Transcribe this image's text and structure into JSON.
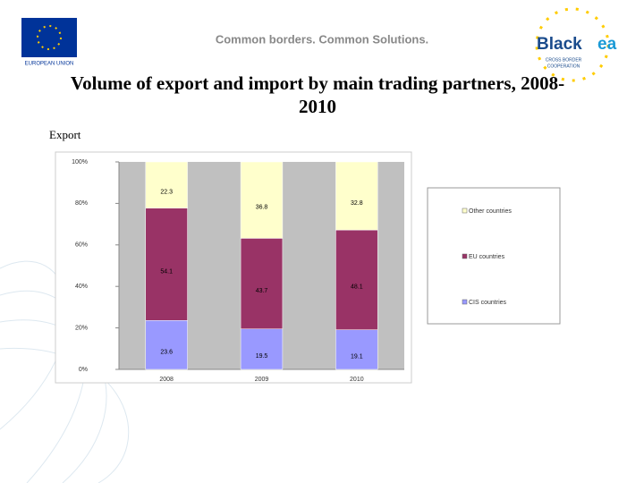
{
  "header": {
    "eu_label": "EUROPEAN UNION",
    "slogan": "Common borders. Common Solutions.",
    "logo_word": "Black",
    "logo_word2": "ea",
    "logo_line1": "CROSS BORDER",
    "logo_line2": "COOPERATION"
  },
  "title": "Volume of export and import by main trading partners, 2008-2010",
  "subtitle": "Export",
  "chart_data": {
    "type": "stacked_bar",
    "categories": [
      "2008",
      "2009",
      "2010"
    ],
    "series": [
      {
        "name": "CIS countries",
        "color": "#9999ff",
        "values": [
          23.6,
          19.5,
          19.1
        ]
      },
      {
        "name": "EU countries",
        "color": "#993366",
        "values": [
          54.1,
          43.7,
          48.1
        ]
      },
      {
        "name": "Other countries",
        "color": "#ffffcc",
        "values": [
          22.3,
          36.8,
          32.8
        ]
      }
    ],
    "ylim": [
      0,
      100
    ],
    "yticks": [
      {
        "value": 0,
        "label": "0%"
      },
      {
        "value": 20,
        "label": "20%"
      },
      {
        "value": 40,
        "label": "40%"
      },
      {
        "value": 60,
        "label": "60%"
      },
      {
        "value": 80,
        "label": "80%"
      },
      {
        "value": 100,
        "label": "100%"
      }
    ],
    "plot_background": "#c0c0c0"
  }
}
